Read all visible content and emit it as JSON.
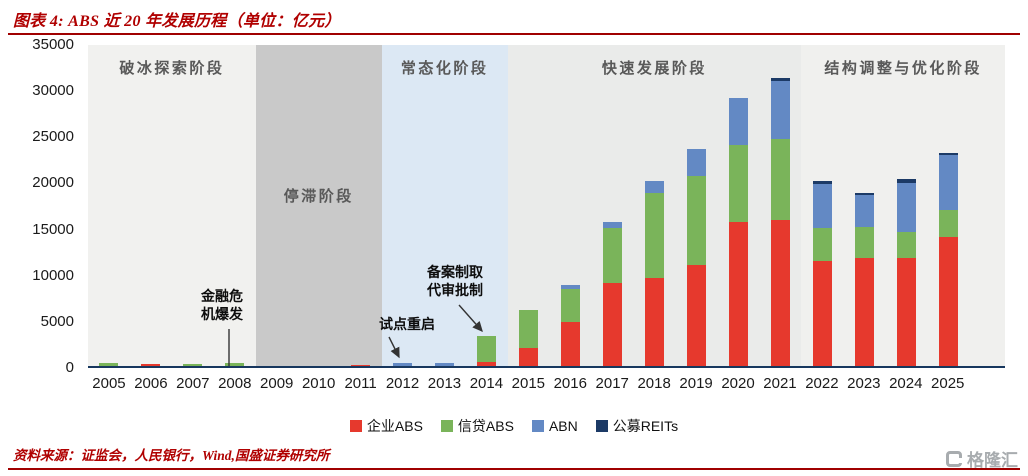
{
  "theme": {
    "accent_red": "#b00000",
    "axis_color": "#17375e",
    "stage_label_color": "#595959"
  },
  "header": {
    "title": "图表 4: ABS 近 20 年发展历程（单位：亿元）"
  },
  "footer": {
    "source": "资料来源：证监会，人民银行，Wind,国盛证券研究所"
  },
  "watermark": {
    "text": "格隆汇"
  },
  "chart_data": {
    "type": "bar",
    "stacked": true,
    "title": "ABS 近 20 年发展历程",
    "unit": "亿元",
    "categories": [
      "2005",
      "2006",
      "2007",
      "2008",
      "2009",
      "2010",
      "2011",
      "2012",
      "2013",
      "2014",
      "2015",
      "2016",
      "2017",
      "2018",
      "2019",
      "2020",
      "2021",
      "2022",
      "2023",
      "2024",
      "2025"
    ],
    "series": [
      {
        "name": "企业ABS",
        "color": "#e6392d",
        "values": [
          0,
          200,
          0,
          0,
          0,
          0,
          100,
          0,
          0,
          400,
          2000,
          4800,
          9000,
          9500,
          11000,
          15600,
          15800,
          11400,
          11700,
          11700,
          14000
        ]
      },
      {
        "name": "信贷ABS",
        "color": "#7ab45a",
        "values": [
          300,
          0,
          200,
          300,
          0,
          0,
          0,
          0,
          0,
          2900,
          4100,
          3500,
          6000,
          9300,
          9600,
          8300,
          8800,
          3600,
          3400,
          2800,
          2900
        ]
      },
      {
        "name": "ABN",
        "color": "#6389c4",
        "values": [
          0,
          0,
          0,
          0,
          0,
          0,
          0,
          300,
          300,
          0,
          0,
          500,
          550,
          1250,
          2900,
          5100,
          6300,
          4700,
          3400,
          5300,
          6000
        ]
      },
      {
        "name": "公募REITs",
        "color": "#1c3a66",
        "values": [
          0,
          0,
          0,
          0,
          0,
          0,
          0,
          0,
          0,
          0,
          0,
          0,
          0,
          0,
          0,
          0,
          350,
          350,
          200,
          500,
          150
        ]
      }
    ],
    "ylim": [
      0,
      35000
    ],
    "yticks": [
      0,
      5000,
      10000,
      15000,
      20000,
      25000,
      30000,
      35000
    ],
    "grid": false,
    "legend_position": "bottom",
    "stages": [
      {
        "label": "破冰探索阶段",
        "from": "2005",
        "to": "2008",
        "color": "#f1f1ef",
        "label_pos": "top"
      },
      {
        "label": "停滞阶段",
        "from": "2009",
        "to": "2011",
        "color": "#c9c9c9",
        "label_pos": "middle"
      },
      {
        "label": "常态化阶段",
        "from": "2012",
        "to": "2014",
        "color": "#dce8f4",
        "label_pos": "top"
      },
      {
        "label": "快速发展阶段",
        "from": "2015",
        "to": "2021",
        "color": "#eaebea",
        "label_pos": "top"
      },
      {
        "label": "结构调整与优化阶段",
        "from": "2022",
        "to": "2025",
        "color": "#f0f0ee",
        "label_pos": "top"
      }
    ],
    "annotations": [
      {
        "id": "financial-crisis",
        "lines": [
          "金融危",
          "机爆发"
        ],
        "target_year": "2008"
      },
      {
        "id": "pilot-restart",
        "lines": [
          "试点重启"
        ],
        "target_year": "2012"
      },
      {
        "id": "filing-system",
        "lines": [
          "备案制取",
          "代审批制"
        ],
        "target_year": "2014"
      }
    ]
  }
}
